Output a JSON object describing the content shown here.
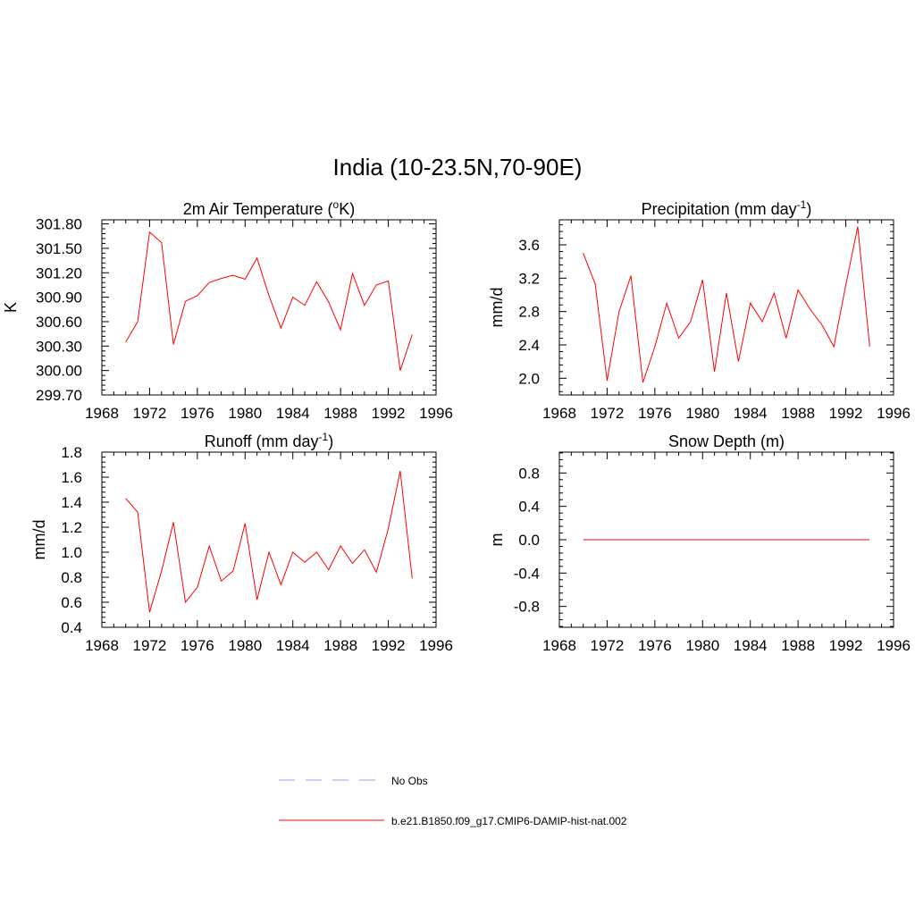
{
  "title": "India (10-23.5N,70-90E)",
  "colors": {
    "model_line": "#ff0000",
    "obs_line": "#9999ff",
    "axes": "#000000"
  },
  "chart_data": [
    {
      "type": "line",
      "title": "2m Air Temperature (°K)",
      "title_main": "2m Air Temperature (",
      "title_sup": "o",
      "title_end": "K)",
      "ylabel": "K",
      "xlim": [
        1968,
        1996
      ],
      "ylim": [
        299.7,
        301.85
      ],
      "xticks": [
        1968,
        1972,
        1976,
        1980,
        1984,
        1988,
        1992,
        1996
      ],
      "yticks": [
        299.7,
        300.0,
        300.3,
        300.6,
        300.9,
        301.2,
        301.5,
        301.8
      ],
      "ytick_labels": [
        "299.70",
        "300.00",
        "300.30",
        "300.60",
        "300.90",
        "301.20",
        "301.50",
        "301.80"
      ],
      "x": [
        1970,
        1971,
        1972,
        1973,
        1974,
        1975,
        1976,
        1977,
        1978,
        1979,
        1980,
        1981,
        1982,
        1983,
        1984,
        1985,
        1986,
        1987,
        1988,
        1989,
        1990,
        1991,
        1992,
        1993,
        1994
      ],
      "series": [
        {
          "values": [
            300.35,
            300.6,
            301.7,
            301.57,
            300.32,
            300.85,
            300.92,
            301.08,
            301.13,
            301.17,
            301.12,
            301.38,
            300.92,
            300.52,
            300.9,
            300.8,
            301.09,
            300.84,
            300.5,
            301.19,
            300.8,
            301.05,
            301.1,
            300.0,
            300.44
          ]
        }
      ]
    },
    {
      "type": "line",
      "title": "Precipitation (mm day-1)",
      "title_main": "Precipitation (mm day",
      "title_sup": "-1",
      "title_end": ")",
      "ylabel": "mm/d",
      "xlim": [
        1968,
        1996
      ],
      "ylim": [
        1.8,
        3.9
      ],
      "xticks": [
        1968,
        1972,
        1976,
        1980,
        1984,
        1988,
        1992,
        1996
      ],
      "yticks": [
        2.0,
        2.4,
        2.8,
        3.2,
        3.6
      ],
      "ytick_labels": [
        "2.0",
        "2.4",
        "2.8",
        "3.2",
        "3.6"
      ],
      "x": [
        1970,
        1971,
        1972,
        1973,
        1974,
        1975,
        1976,
        1977,
        1978,
        1979,
        1980,
        1981,
        1982,
        1983,
        1984,
        1985,
        1986,
        1987,
        1988,
        1989,
        1990,
        1991,
        1992,
        1993,
        1994
      ],
      "series": [
        {
          "values": [
            3.5,
            3.13,
            1.97,
            2.8,
            3.23,
            1.95,
            2.38,
            2.9,
            2.48,
            2.68,
            3.18,
            2.08,
            3.02,
            2.2,
            2.9,
            2.68,
            3.02,
            2.48,
            3.06,
            2.83,
            2.64,
            2.38,
            3.12,
            3.82,
            2.38
          ]
        }
      ]
    },
    {
      "type": "line",
      "title": "Runoff (mm day-1)",
      "title_main": "Runoff (mm day",
      "title_sup": "-1",
      "title_end": ")",
      "ylabel": "mm/d",
      "xlim": [
        1968,
        1996
      ],
      "ylim": [
        0.4,
        1.8
      ],
      "xticks": [
        1968,
        1972,
        1976,
        1980,
        1984,
        1988,
        1992,
        1996
      ],
      "yticks": [
        0.4,
        0.6,
        0.8,
        1.0,
        1.2,
        1.4,
        1.6,
        1.8
      ],
      "ytick_labels": [
        "0.4",
        "0.6",
        "0.8",
        "1.0",
        "1.2",
        "1.4",
        "1.6",
        "1.8"
      ],
      "x": [
        1970,
        1971,
        1972,
        1973,
        1974,
        1975,
        1976,
        1977,
        1978,
        1979,
        1980,
        1981,
        1982,
        1983,
        1984,
        1985,
        1986,
        1987,
        1988,
        1989,
        1990,
        1991,
        1992,
        1993,
        1994
      ],
      "series": [
        {
          "values": [
            1.43,
            1.32,
            0.52,
            0.85,
            1.24,
            0.6,
            0.72,
            1.05,
            0.77,
            0.85,
            1.23,
            0.62,
            1.0,
            0.74,
            1.0,
            0.92,
            1.0,
            0.86,
            1.05,
            0.91,
            1.02,
            0.84,
            1.19,
            1.65,
            0.79
          ]
        }
      ]
    },
    {
      "type": "line",
      "title": "Snow Depth (m)",
      "title_main": "Snow Depth (m)",
      "title_sup": "",
      "title_end": "",
      "ylabel": "m",
      "xlim": [
        1968,
        1996
      ],
      "ylim": [
        -1.05,
        1.05
      ],
      "xticks": [
        1968,
        1972,
        1976,
        1980,
        1984,
        1988,
        1992,
        1996
      ],
      "yticks": [
        -0.8,
        -0.4,
        0.0,
        0.4,
        0.8
      ],
      "ytick_labels": [
        "-0.8",
        "-0.4",
        "0.0",
        "0.4",
        "0.8"
      ],
      "x": [
        1970,
        1971,
        1972,
        1973,
        1974,
        1975,
        1976,
        1977,
        1978,
        1979,
        1980,
        1981,
        1982,
        1983,
        1984,
        1985,
        1986,
        1987,
        1988,
        1989,
        1990,
        1991,
        1992,
        1993,
        1994
      ],
      "series": [
        {
          "values": [
            0,
            0,
            0,
            0,
            0,
            0,
            0,
            0,
            0,
            0,
            0,
            0,
            0,
            0,
            0,
            0,
            0,
            0,
            0,
            0,
            0,
            0,
            0,
            0,
            0
          ]
        }
      ]
    }
  ],
  "legend": {
    "items": [
      {
        "label": "No Obs",
        "style": "dashed",
        "color": "#9999ff"
      },
      {
        "label": "b.e21.B1850.f09_g17.CMIP6-DAMIP-hist-nat.002",
        "style": "solid",
        "color": "#ff0000"
      }
    ]
  }
}
